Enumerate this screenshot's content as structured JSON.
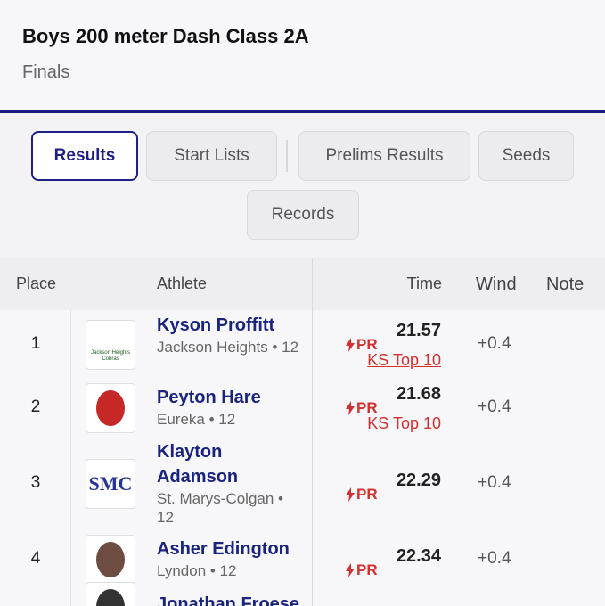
{
  "header": {
    "title": "Boys 200 meter Dash Class 2A",
    "subtitle": "Finals"
  },
  "tabs": [
    "Results",
    "Start Lists",
    "Prelims Results",
    "Seeds",
    "Records"
  ],
  "table": {
    "columns": [
      "Place",
      "Athlete",
      "Time",
      "Wind",
      "Note"
    ],
    "rows": [
      {
        "place": 1,
        "logo_text": "Jackson Heights Cobras",
        "athlete": "Kyson Proffitt",
        "team": "Jackson Heights • 12",
        "badge": "PR",
        "time": 21.57,
        "record": "KS Top 10",
        "wind": "+0.4"
      },
      {
        "place": 2,
        "athlete": "Peyton Hare",
        "team": "Eureka • 12",
        "badge": "PR",
        "time": 21.68,
        "record": "KS Top 10",
        "wind": "+0.4"
      },
      {
        "place": 3,
        "logo_text": "SMC",
        "athlete": "Klayton Adamson",
        "team": "St. Marys-Colgan • 12",
        "badge": "PR",
        "time": 22.29,
        "wind": "+0.4"
      },
      {
        "place": 4,
        "athlete": "Asher Edington",
        "team": "Lyndon • 12",
        "badge": "PR",
        "time": 22.34,
        "wind": "+0.4"
      },
      {
        "athlete": "Jonathan Froese"
      }
    ]
  }
}
